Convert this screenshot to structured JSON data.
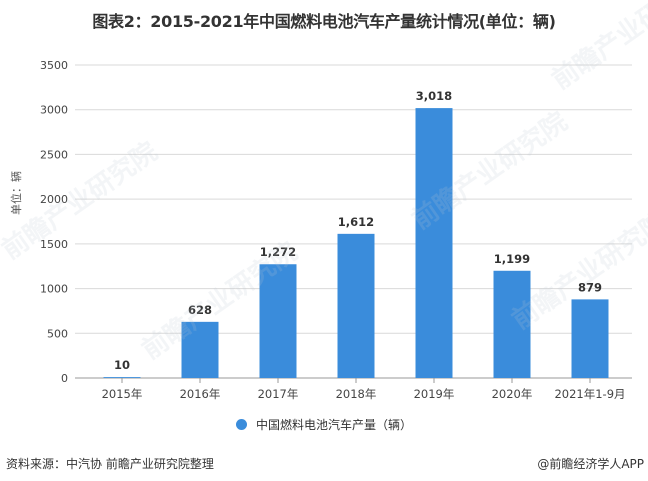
{
  "title": "图表2：2015-2021年中国燃料电池汽车产量统计情况(单位：辆)",
  "y_axis_label": "单位：辆",
  "legend": {
    "label": "中国燃料电池汽车产量（辆）",
    "color": "#3a8cdb"
  },
  "footer": {
    "source": "资料来源：中汽协 前瞻产业研究院整理",
    "credit": "@前瞻经济学人APP"
  },
  "watermark": "前瞻产业研究院",
  "chart_data": {
    "type": "bar",
    "title": "图表2：2015-2021年中国燃料电池汽车产量统计情况(单位：辆)",
    "xlabel": "",
    "ylabel": "单位：辆",
    "categories": [
      "2015年",
      "2016年",
      "2017年",
      "2018年",
      "2019年",
      "2020年",
      "2021年1-9月"
    ],
    "series": [
      {
        "name": "中国燃料电池汽车产量（辆）",
        "color": "#3a8cdb",
        "values": [
          10,
          628,
          1272,
          1612,
          3018,
          1199,
          879
        ],
        "labels": [
          "10",
          "628",
          "1,272",
          "1,612",
          "3,018",
          "1,199",
          "879"
        ]
      }
    ],
    "ylim": [
      0,
      3500
    ],
    "yticks": [
      0,
      500,
      1000,
      1500,
      2000,
      2500,
      3000,
      3500
    ],
    "grid": true,
    "legend_position": "bottom"
  }
}
